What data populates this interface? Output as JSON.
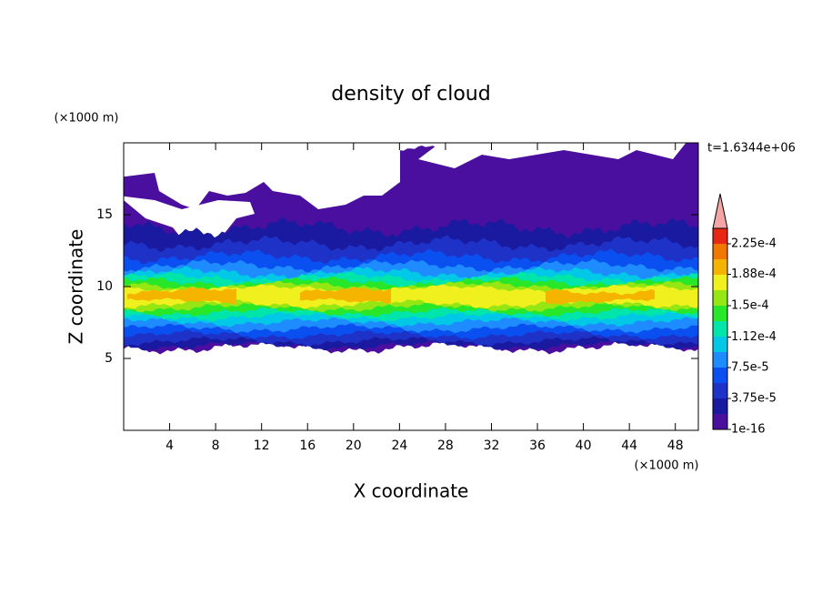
{
  "chart_data": {
    "type": "contour",
    "title": "density of cloud",
    "x_label": "X coordinate",
    "y_label": "Z coordinate",
    "x_unit": "(×1000 m)",
    "y_unit": "(×1000 m)",
    "annotation": "t=1.6344e+06",
    "xlim": [
      0,
      50
    ],
    "ylim": [
      0,
      20
    ],
    "xticks": [
      4,
      8,
      12,
      16,
      20,
      24,
      28,
      32,
      36,
      40,
      44,
      48
    ],
    "yticks": [
      5,
      10,
      15
    ],
    "colorbar": {
      "ticks": [
        {
          "value": 1e-16,
          "label": "1e-16"
        },
        {
          "value": 3.75e-05,
          "label": "3.75e-5"
        },
        {
          "value": 7.5e-05,
          "label": "7.5e-5"
        },
        {
          "value": 0.000112,
          "label": "1.12e-4"
        },
        {
          "value": 0.00015,
          "label": "1.5e-4"
        },
        {
          "value": 0.000188,
          "label": "1.88e-4"
        },
        {
          "value": 0.000225,
          "label": "2.25e-4"
        }
      ],
      "colors": [
        "#4b0fa0",
        "#1a1aa0",
        "#1e32c8",
        "#0a50f0",
        "#1e8cff",
        "#00c8e6",
        "#00e6aa",
        "#28e628",
        "#96e614",
        "#f0f01e",
        "#f5b400",
        "#f07800",
        "#e62814"
      ],
      "extend_color": "#f4a6a6"
    }
  }
}
